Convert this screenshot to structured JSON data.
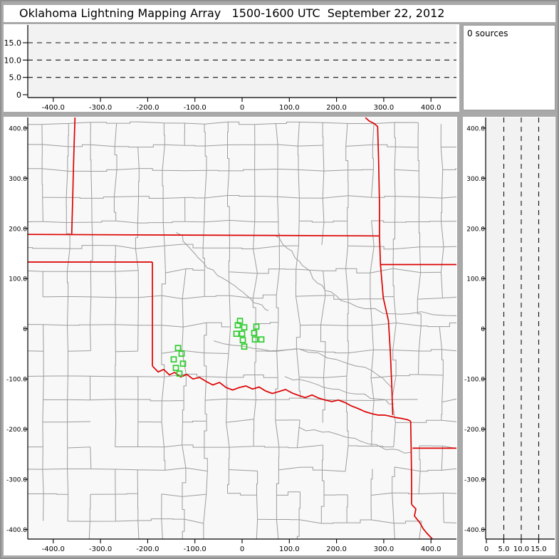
{
  "title": "Oklahoma Lightning Mapping Array   1500-1600 UTC  September 22, 2012",
  "source_count_label": "0 sources",
  "colors": {
    "chrome": "#a9a9a9",
    "panel_face": "#f2f2f2",
    "map_face": "#f8f8f8",
    "county_line": "#9c9c9c",
    "state_border": "#dd0000",
    "station": "#2ecc2e",
    "axis": "#000000",
    "dashed_line": "#111111"
  },
  "chart_data": [
    {
      "id": "altitude_vs_eastwest",
      "type": "scatter",
      "description": "Altitude (km) vs east-west distance (km) cross-section; empty, 0 sources in period",
      "x_range_km": [
        -454,
        454
      ],
      "y_range_km": [
        0,
        20
      ],
      "x_ticks": {
        "values": [
          -400,
          -300,
          -200,
          -100,
          0,
          100,
          200,
          300,
          400
        ],
        "labels": [
          "-400.0",
          "-300.0",
          "-200.0",
          "-100.0",
          "0",
          "100.0",
          "200.0",
          "300.0",
          "400.0"
        ]
      },
      "y_ticks": {
        "values": [
          15,
          10,
          5,
          0
        ],
        "labels": [
          "15.0",
          "10.0",
          "5.0",
          "0"
        ]
      },
      "dashed_altitudes_km": [
        5,
        10,
        15
      ],
      "grid": "dashed horizontal altitude lines",
      "points": []
    },
    {
      "id": "source_count",
      "type": "table",
      "label": "0 sources",
      "value": 0
    },
    {
      "id": "plan_view",
      "type": "scatter",
      "description": "Plan view map, km east and north of network center; county lines gray, state borders red, LMA stations as green squares",
      "x_range_km": [
        -454,
        454
      ],
      "y_range_km": [
        -419,
        421
      ],
      "x_ticks": {
        "values": [
          -400,
          -300,
          -200,
          -100,
          0,
          100,
          200,
          300,
          400
        ],
        "labels": [
          "-400.0",
          "-300.0",
          "-200.0",
          "-100.0",
          "0",
          "100.0",
          "200.0",
          "300.0",
          "400.0"
        ]
      },
      "y_ticks": {
        "values": [
          400,
          300,
          200,
          100,
          0,
          -100,
          -200,
          -300,
          -400
        ],
        "labels": [
          "400.0",
          "300.0",
          "200.0",
          "100.0",
          "0",
          "-100.0",
          "-200.0",
          "-300.0",
          "-400.0"
        ]
      },
      "stations_km": [
        [
          -4.5,
          15.6
        ],
        [
          -9,
          7.1
        ],
        [
          4.5,
          2.8
        ],
        [
          30.2,
          4.3
        ],
        [
          -12.1,
          -9.9
        ],
        [
          0,
          -9.9
        ],
        [
          25.6,
          -8.5
        ],
        [
          1.5,
          -22.7
        ],
        [
          27.2,
          -21.3
        ],
        [
          40.7,
          -21.3
        ],
        [
          4.5,
          -35.5
        ],
        [
          -135.7,
          -38.3
        ],
        [
          -128.2,
          -49.6
        ],
        [
          -144.8,
          -61
        ],
        [
          -125.2,
          -69.5
        ],
        [
          -140.3,
          -78
        ],
        [
          -132.7,
          -89.4
        ]
      ],
      "state_borders_km": {
        "colorado_kansas": [
          [
            -354,
            421
          ],
          [
            -357,
            330
          ],
          [
            -359,
            255
          ],
          [
            -361,
            188
          ]
        ],
        "oklahoma_kansas_37N": [
          [
            -454,
            188
          ],
          [
            291,
            185
          ]
        ],
        "kansas_missouri": [
          [
            261,
            421
          ],
          [
            269,
            414
          ],
          [
            280,
            409
          ],
          [
            287,
            403
          ],
          [
            289,
            340
          ],
          [
            291,
            250
          ],
          [
            291,
            185
          ]
        ],
        "missouri_arkansas_36_5N": [
          [
            293,
            128
          ],
          [
            455,
            128
          ]
        ],
        "oklahoma_arkansas": [
          [
            291,
            185
          ],
          [
            293,
            128
          ],
          [
            299,
            62
          ],
          [
            310,
            16
          ],
          [
            314,
            -48
          ],
          [
            317,
            -115
          ],
          [
            319,
            -172
          ]
        ],
        "texas_panhandle_north_36_5N": [
          [
            -454,
            133
          ],
          [
            -190,
            133
          ]
        ],
        "texas_oklahoma_100W": [
          [
            -190,
            133
          ],
          [
            -190,
            -74
          ]
        ],
        "red_river": [
          [
            -190,
            -74
          ],
          [
            -178,
            -86
          ],
          [
            -166,
            -81
          ],
          [
            -154,
            -92
          ],
          [
            -143,
            -87
          ],
          [
            -130,
            -96
          ],
          [
            -117,
            -91
          ],
          [
            -104,
            -100
          ],
          [
            -90,
            -97
          ],
          [
            -76,
            -105
          ],
          [
            -62,
            -112
          ],
          [
            -48,
            -107
          ],
          [
            -34,
            -117
          ],
          [
            -20,
            -122
          ],
          [
            -6,
            -117
          ],
          [
            8,
            -114
          ],
          [
            22,
            -120
          ],
          [
            36,
            -116
          ],
          [
            50,
            -124
          ],
          [
            64,
            -129
          ],
          [
            78,
            -125
          ],
          [
            92,
            -121
          ],
          [
            106,
            -128
          ],
          [
            120,
            -133
          ],
          [
            134,
            -137
          ],
          [
            148,
            -132
          ],
          [
            162,
            -138
          ],
          [
            176,
            -142
          ],
          [
            190,
            -145
          ],
          [
            204,
            -142
          ],
          [
            218,
            -147
          ],
          [
            232,
            -154
          ],
          [
            246,
            -159
          ],
          [
            260,
            -165
          ],
          [
            274,
            -169
          ],
          [
            288,
            -172
          ],
          [
            302,
            -172
          ],
          [
            312,
            -174
          ],
          [
            326,
            -177
          ],
          [
            340,
            -179
          ],
          [
            350,
            -181
          ],
          [
            357,
            -184
          ]
        ],
        "texas_arkansas": [
          [
            357,
            -184
          ],
          [
            358,
            -240
          ],
          [
            359,
            -300
          ],
          [
            359,
            -350
          ]
        ],
        "arkansas_louisiana_33N": [
          [
            361,
            -238
          ],
          [
            455,
            -238
          ]
        ],
        "texas_louisiana": [
          [
            359,
            -350
          ],
          [
            368,
            -359
          ],
          [
            365,
            -373
          ],
          [
            376,
            -386
          ],
          [
            384,
            -399
          ],
          [
            391,
            -407
          ],
          [
            403,
            -419
          ]
        ]
      },
      "rivers_km": [
        [
          [
            70,
            186
          ],
          [
            96,
            160
          ],
          [
            122,
            134
          ],
          [
            150,
            100
          ],
          [
            176,
            76
          ],
          [
            210,
            56
          ],
          [
            260,
            40
          ],
          [
            318,
            30
          ],
          [
            380,
            34
          ],
          [
            454,
            26
          ]
        ],
        [
          [
            -140,
            192
          ],
          [
            -112,
            162
          ],
          [
            -82,
            132
          ],
          [
            -52,
            106
          ],
          [
            -16,
            86
          ],
          [
            10,
            66
          ],
          [
            34,
            50
          ],
          [
            56,
            36
          ]
        ],
        [
          [
            -60,
            -24
          ],
          [
            0,
            -34
          ],
          [
            60,
            -44
          ],
          [
            120,
            -40
          ],
          [
            180,
            -58
          ],
          [
            240,
            -74
          ],
          [
            290,
            -94
          ],
          [
            318,
            -118
          ]
        ],
        [
          [
            90,
            -95
          ],
          [
            140,
            -105
          ],
          [
            190,
            -120
          ],
          [
            240,
            -130
          ],
          [
            290,
            -140
          ],
          [
            322,
            -150
          ]
        ],
        [
          [
            120,
            -196
          ],
          [
            170,
            -206
          ],
          [
            220,
            -216
          ],
          [
            270,
            -230
          ],
          [
            320,
            -240
          ],
          [
            358,
            -246
          ]
        ]
      ],
      "points": []
    },
    {
      "id": "altitude_vs_northsouth",
      "type": "scatter",
      "description": "Altitude (km) vs north-south distance (km) cross-section; empty, 0 sources in period",
      "x_range_km": [
        0,
        19.8
      ],
      "y_range_km": [
        -419,
        421
      ],
      "x_ticks": {
        "values": [
          0,
          5,
          10,
          15
        ],
        "labels": [
          "0",
          "5.0",
          "10.0",
          "15.0"
        ]
      },
      "y_ticks": {
        "values": [
          400,
          300,
          200,
          100,
          0,
          -100,
          -200,
          -300,
          -400
        ],
        "labels": [
          "400.0",
          "300.0",
          "200.0",
          "100.0",
          "0",
          "-100.0",
          "-200.0",
          "-300.0",
          "-400.0"
        ]
      },
      "dashed_altitudes_km": [
        5,
        10,
        15
      ],
      "points": []
    }
  ]
}
